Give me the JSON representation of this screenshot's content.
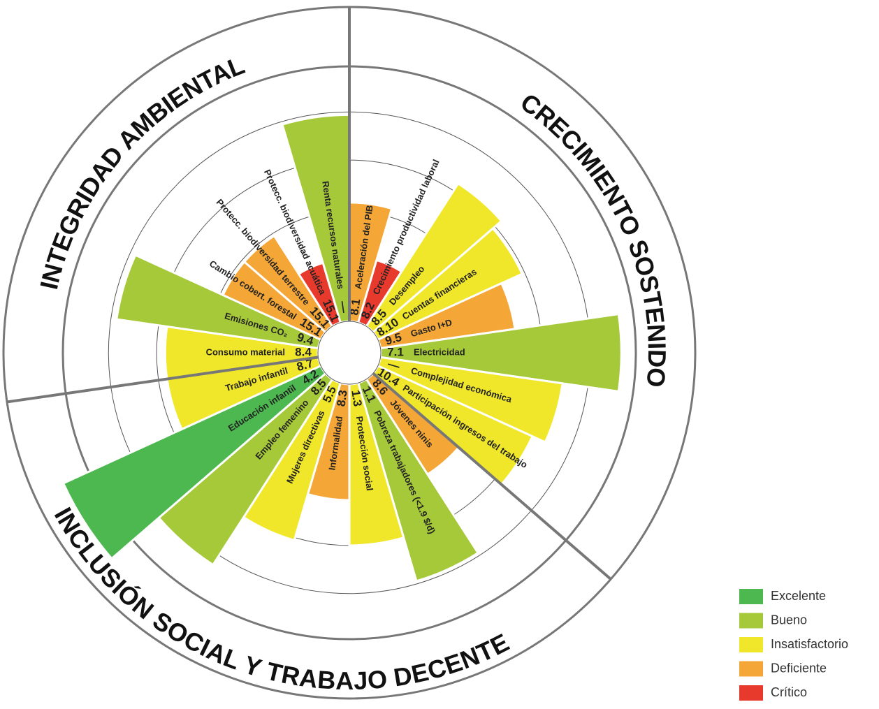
{
  "chart_data": {
    "type": "radial_bar",
    "categories": [
      "Aceleración del PIB",
      "Crecimiento productividad laboral",
      "Desempleo",
      "Cuentas financieras",
      "Gasto I+D",
      "Electricidad",
      "Complejidad económica",
      "Participación ingresos del trabajo",
      "Jóvenes ninis",
      "Pobreza trabajadores (<1.9 $/d)",
      "Protección social",
      "Informalidad",
      "Mujeres directivas",
      "Empleo femenino",
      "Educación infantil",
      "Trabajo infantil",
      "Consumo material",
      "Emisiones CO₂",
      "Cambio cobert. forestal",
      "Protecc. biodiversidad terrestre",
      "Protecc. biodiversidad acuática",
      "Renta recursos naturales"
    ],
    "codes": [
      "8.1",
      "8.2",
      "8.5",
      "8.10",
      "9.5",
      "7.1",
      "—",
      "10.4",
      "8.6",
      "1.1",
      "1.3",
      "8.3",
      "5.5",
      "8.5",
      "4.2",
      "8.7",
      "8.4",
      "9.4",
      "15.1",
      "15.1",
      "15.1",
      "—"
    ],
    "values": [
      42,
      23,
      60,
      56,
      48,
      85,
      65,
      60,
      40,
      73,
      57,
      41,
      58,
      78,
      100,
      54,
      54,
      72,
      38,
      38,
      22,
      73
    ],
    "levels": [
      3,
      4,
      2,
      2,
      3,
      1,
      2,
      2,
      3,
      1,
      2,
      3,
      2,
      1,
      0,
      2,
      2,
      1,
      3,
      3,
      4,
      1
    ],
    "rlim": [
      0,
      100
    ],
    "rticks": [
      22,
      39,
      57,
      74
    ],
    "sections": [
      {
        "title": "CRECIMIENTO SOSTENIDO",
        "start": 0
      },
      {
        "title": "INCLUSIÓN SOCIAL Y TRABAJO DECENTE",
        "start": 8
      },
      {
        "title": "INTEGRIDAD AMBIENTAL",
        "start": 16
      }
    ],
    "legend": [
      {
        "name": "Excelente",
        "color": "#4cb84f"
      },
      {
        "name": "Bueno",
        "color": "#a6c93a"
      },
      {
        "name": "Insatisfactorio",
        "color": "#f0e72a"
      },
      {
        "name": "Deficiente",
        "color": "#f4a636"
      },
      {
        "name": "Crítico",
        "color": "#e8392d"
      }
    ]
  }
}
